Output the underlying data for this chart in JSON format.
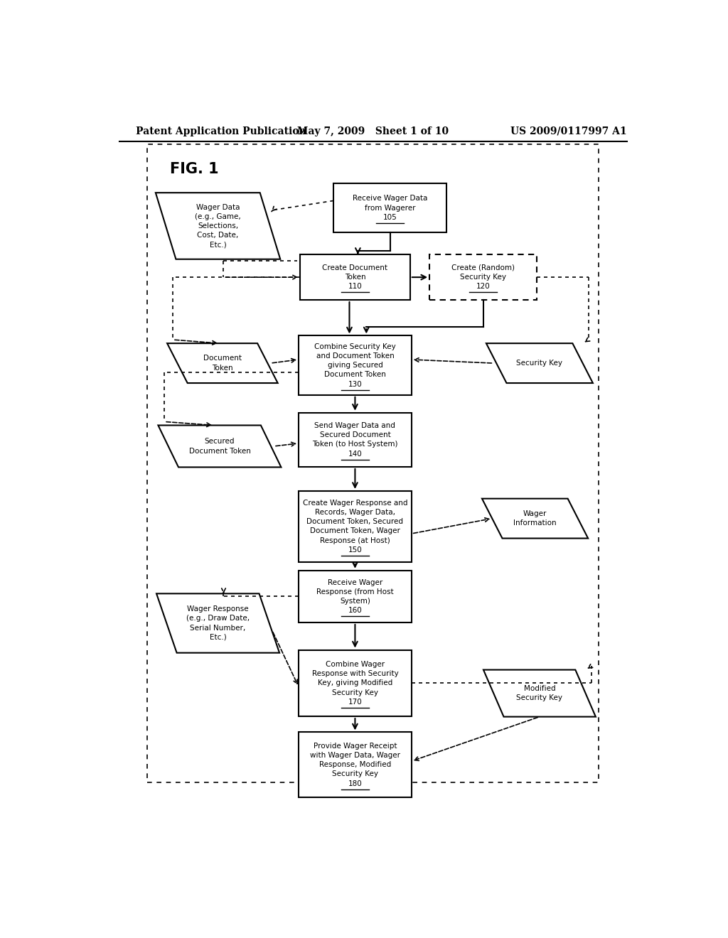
{
  "header_left": "Patent Application Publication",
  "header_mid": "May 7, 2009   Sheet 1 of 10",
  "header_right": "US 2009/0117997 A1",
  "fig_label": "FIG. 1",
  "bg_color": "#ffffff"
}
